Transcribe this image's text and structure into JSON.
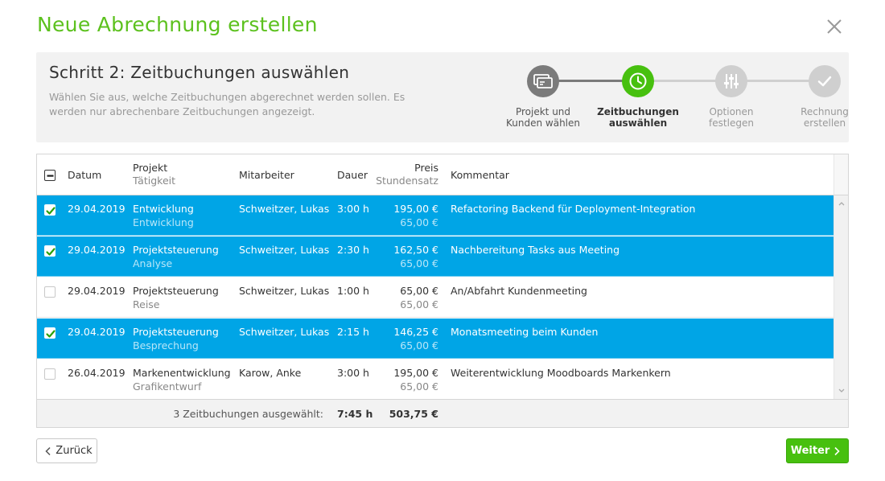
{
  "dialog": {
    "title": "Neue Abrechnung erstellen",
    "close_icon": "close-icon"
  },
  "step": {
    "title": "Schritt 2: Zeitbuchungen auswählen",
    "description": "Wählen Sie aus, welche Zeitbuchungen abgerechnet werden sollen. Es werden nur abrechenbare Zeitbuchungen angezeigt."
  },
  "stepper": [
    {
      "label_line1": "Projekt und",
      "label_line2": "Kunden wählen",
      "state": "done",
      "icon": "card-icon",
      "color": "#7b7b7b"
    },
    {
      "label_line1": "Zeitbuchungen",
      "label_line2": "auswählen",
      "state": "active",
      "icon": "clock-icon",
      "color": "#47c00f"
    },
    {
      "label_line1": "Optionen",
      "label_line2": "festlegen",
      "state": "pending",
      "icon": "sliders-icon",
      "color": "#cfcfcf"
    },
    {
      "label_line1": "Rechnung",
      "label_line2": "erstellen",
      "state": "pending",
      "icon": "check-icon",
      "color": "#cfcfcf"
    }
  ],
  "table": {
    "headers": {
      "datum": "Datum",
      "projekt": "Projekt",
      "taetigkeit": "Tätigkeit",
      "mitarbeiter": "Mitarbeiter",
      "dauer": "Dauer",
      "preis": "Preis",
      "stundensatz": "Stundensatz",
      "kommentar": "Kommentar"
    },
    "rows": [
      {
        "checked": true,
        "datum": "29.04.2019",
        "projekt": "Entwicklung",
        "taetigkeit": "Entwicklung",
        "mitarbeiter": "Schweitzer, Lukas",
        "dauer": "3:00 h",
        "preis": "195,00 €",
        "stundensatz": "65,00 €",
        "kommentar": "Refactoring Backend für Deployment-Integration"
      },
      {
        "checked": true,
        "datum": "29.04.2019",
        "projekt": "Projektsteuerung",
        "taetigkeit": "Analyse",
        "mitarbeiter": "Schweitzer, Lukas",
        "dauer": "2:30 h",
        "preis": "162,50 €",
        "stundensatz": "65,00 €",
        "kommentar": "Nachbereitung Tasks aus Meeting"
      },
      {
        "checked": false,
        "datum": "29.04.2019",
        "projekt": "Projektsteuerung",
        "taetigkeit": "Reise",
        "mitarbeiter": "Schweitzer, Lukas",
        "dauer": "1:00 h",
        "preis": "65,00 €",
        "stundensatz": "65,00 €",
        "kommentar": "An/Abfahrt Kundenmeeting"
      },
      {
        "checked": true,
        "datum": "29.04.2019",
        "projekt": "Projektsteuerung",
        "taetigkeit": "Besprechung",
        "mitarbeiter": "Schweitzer, Lukas",
        "dauer": "2:15 h",
        "preis": "146,25 €",
        "stundensatz": "65,00 €",
        "kommentar": "Monatsmeeting beim Kunden"
      },
      {
        "checked": false,
        "datum": "26.04.2019",
        "projekt": "Markenentwicklung",
        "taetigkeit": "Grafikentwurf",
        "mitarbeiter": "Karow, Anke",
        "dauer": "3:00 h",
        "preis": "195,00 €",
        "stundensatz": "65,00 €",
        "kommentar": "Weiterentwicklung Moodboards Markenkern"
      }
    ],
    "footer": {
      "summary": "3 Zeitbuchungen ausgewählt:",
      "total_duration": "7:45 h",
      "total_price": "503,75 €"
    }
  },
  "buttons": {
    "back": "Zurück",
    "next": "Weiter"
  },
  "colors": {
    "brand_green": "#5cc11e",
    "selected_row": "#00a5e6",
    "button_green": "#47c00f"
  }
}
